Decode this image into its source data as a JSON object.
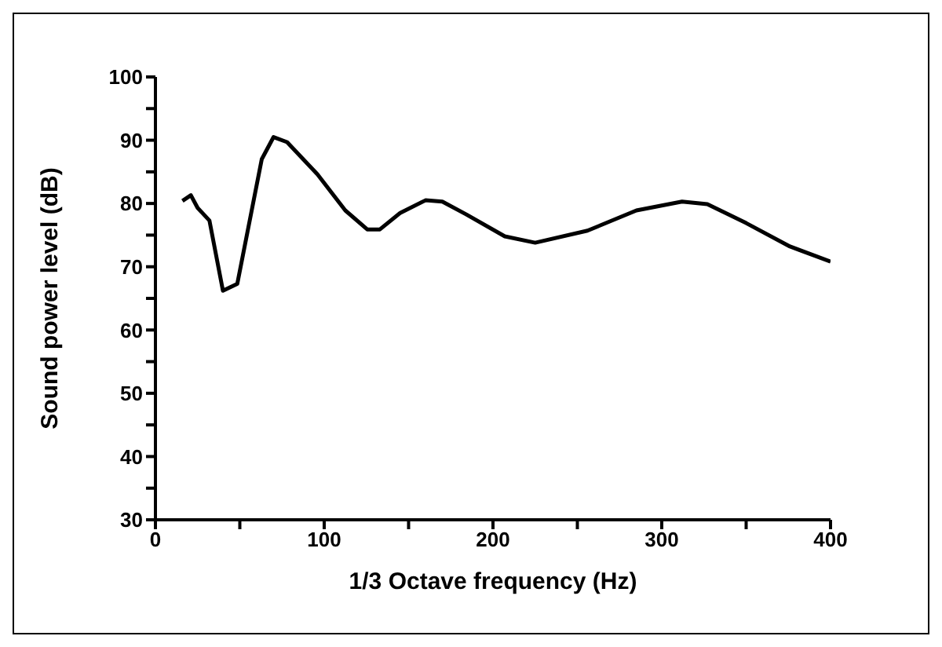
{
  "chart_data": {
    "type": "line",
    "xlabel": "1/3 Octave frequency (Hz)",
    "ylabel": "Sound power level (dB)",
    "x": [
      16,
      21,
      25,
      32,
      40,
      48.5,
      63,
      70,
      78,
      96,
      112.5,
      125.5,
      133,
      145,
      160,
      170,
      184,
      207,
      225,
      256,
      285,
      312,
      327,
      350,
      376,
      400
    ],
    "series": [
      {
        "color": "#000000",
        "values": [
          80.4,
          81.3,
          79.3,
          77.3,
          66.2,
          67.3,
          87,
          90.5,
          89.7,
          84.6,
          78.9,
          75.9,
          75.9,
          78.5,
          80.5,
          80.3,
          78.3,
          74.8,
          73.8,
          75.7,
          78.9,
          80.3,
          79.9,
          76.9,
          73.2,
          70.8
        ]
      }
    ],
    "xlim": [
      0,
      400
    ],
    "xticks": [
      0,
      {
        "value": 50,
        "label": null
      },
      100,
      {
        "value": 150,
        "label": null
      },
      200,
      {
        "value": 250,
        "label": null
      },
      300,
      {
        "value": 350,
        "label": null
      },
      400
    ],
    "ylim": [
      30,
      100
    ],
    "yticks": [
      30,
      {
        "value": 35,
        "label": null
      },
      40,
      {
        "value": 45,
        "label": null
      },
      50,
      {
        "value": 55,
        "label": null
      },
      60,
      {
        "value": 65,
        "label": null
      },
      70,
      {
        "value": 75,
        "label": null
      },
      80,
      {
        "value": 85,
        "label": null
      },
      90,
      {
        "value": 95,
        "label": null
      },
      100
    ],
    "grid": false,
    "legend": false,
    "marker": "none",
    "line_style": "solid"
  }
}
